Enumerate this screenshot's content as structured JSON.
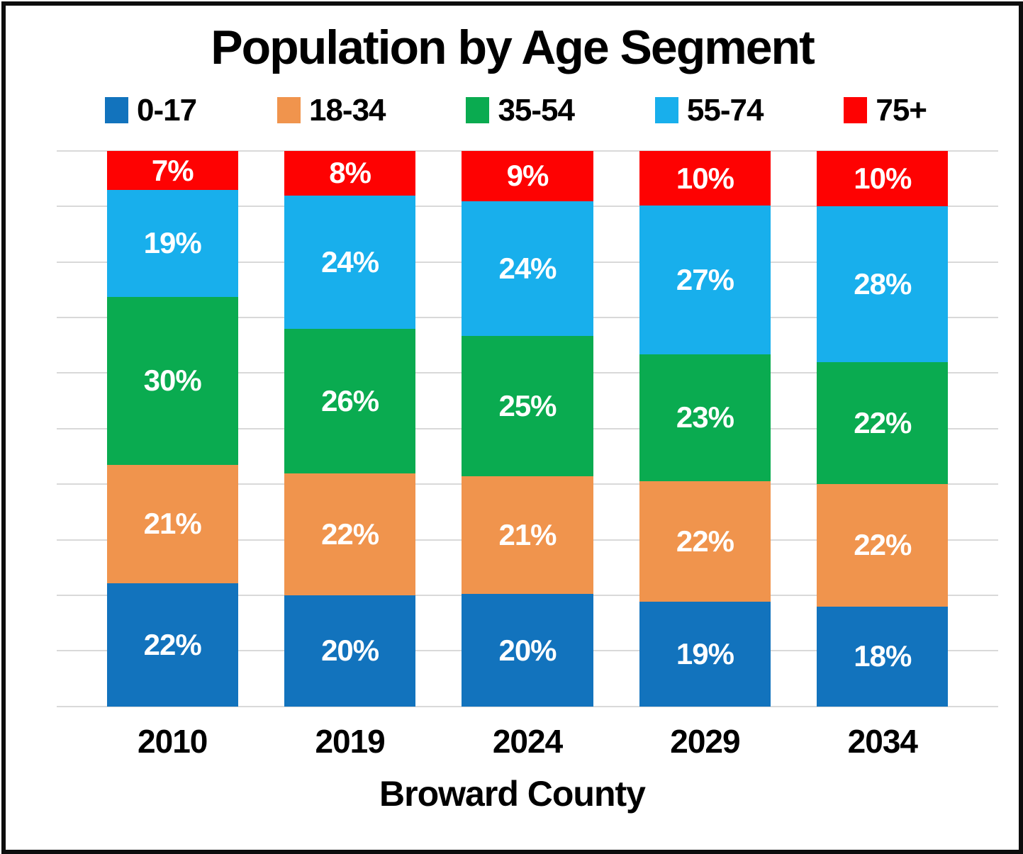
{
  "title": "Population by Age Segment",
  "x_axis_title": "Broward County",
  "grid_color": "#d9d9d9",
  "frame_color": "#0d0d0d",
  "label_text_color": "#ffffff",
  "chart_data": {
    "type": "bar",
    "stacked": true,
    "orientation": "vertical",
    "unit": "%",
    "title": "Population by Age Segment",
    "xlabel": "Broward County",
    "ylabel": "",
    "ylim": [
      0,
      100
    ],
    "gridline_step": 10,
    "grid": true,
    "legend_position": "top",
    "categories": [
      "2010",
      "2019",
      "2024",
      "2029",
      "2034"
    ],
    "series": [
      {
        "name": "0-17",
        "color": "#1273bd",
        "values": [
          22,
          20,
          20,
          19,
          18
        ]
      },
      {
        "name": "18-34",
        "color": "#f0944d",
        "values": [
          21,
          22,
          21,
          22,
          22
        ]
      },
      {
        "name": "35-54",
        "color": "#0aab50",
        "values": [
          30,
          26,
          25,
          23,
          22
        ]
      },
      {
        "name": "55-74",
        "color": "#18afec",
        "values": [
          19,
          24,
          24,
          27,
          28
        ]
      },
      {
        "name": "75+",
        "color": "#fe0202",
        "values": [
          7,
          8,
          9,
          10,
          10
        ]
      }
    ],
    "data_label_format": "{value}%"
  }
}
